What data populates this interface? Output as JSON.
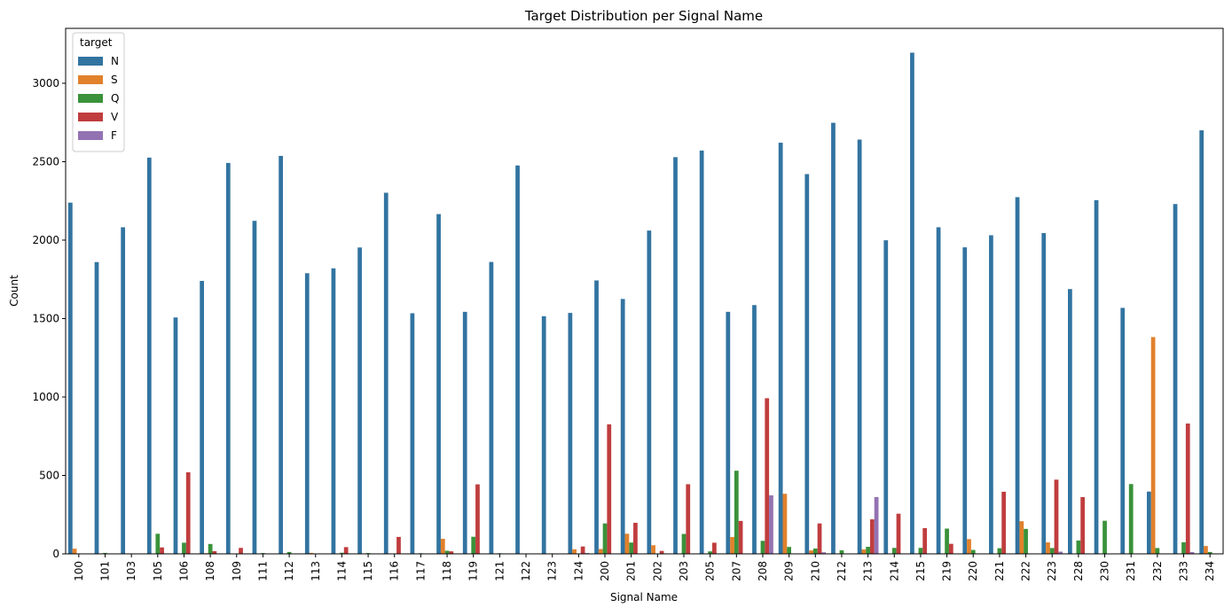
{
  "chart_data": {
    "type": "bar",
    "title": "Target Distribution per Signal Name",
    "xlabel": "Signal Name",
    "ylabel": "Count",
    "ylim": [
      0,
      3350
    ],
    "yticks": [
      0,
      500,
      1000,
      1500,
      2000,
      2500,
      3000
    ],
    "ytick_labels": [
      "0",
      "500",
      "1000",
      "1500",
      "2000",
      "2500",
      "3000"
    ],
    "legend": {
      "title": "target",
      "placement": "top-left"
    },
    "categories": [
      "100",
      "101",
      "103",
      "105",
      "106",
      "108",
      "109",
      "111",
      "112",
      "113",
      "114",
      "115",
      "116",
      "117",
      "118",
      "119",
      "121",
      "122",
      "123",
      "124",
      "200",
      "201",
      "202",
      "203",
      "205",
      "207",
      "208",
      "209",
      "210",
      "212",
      "213",
      "214",
      "215",
      "219",
      "220",
      "221",
      "222",
      "223",
      "228",
      "230",
      "231",
      "232",
      "233",
      "234"
    ],
    "series": [
      {
        "name": "N",
        "color": "#3274a1",
        "values": [
          2239,
          1860,
          2082,
          2526,
          1507,
          1740,
          2492,
          2123,
          2537,
          1789,
          1820,
          1953,
          2302,
          1534,
          2166,
          1543,
          1861,
          2476,
          1515,
          1536,
          1743,
          1625,
          2061,
          2529,
          2571,
          1543,
          1586,
          2621,
          2421,
          2748,
          2641,
          1999,
          3195,
          2082,
          1954,
          2031,
          2274,
          2045,
          1688,
          2255,
          1568,
          397,
          2230,
          2700
        ]
      },
      {
        "name": "S",
        "color": "#e1812c",
        "values": [
          33,
          3,
          2,
          0,
          0,
          4,
          0,
          0,
          1,
          6,
          0,
          1,
          1,
          0,
          96,
          0,
          1,
          0,
          0,
          29,
          31,
          128,
          55,
          2,
          3,
          107,
          0,
          383,
          22,
          0,
          28,
          0,
          0,
          0,
          94,
          0,
          208,
          73,
          0,
          0,
          0,
          1382,
          0,
          50
        ]
      },
      {
        "name": "Q",
        "color": "#3a923a",
        "values": [
          2,
          6,
          2,
          128,
          71,
          63,
          2,
          5,
          12,
          0,
          7,
          5,
          2,
          4,
          20,
          109,
          4,
          0,
          3,
          0,
          194,
          72,
          0,
          127,
          16,
          530,
          83,
          44,
          34,
          23,
          45,
          38,
          38,
          161,
          25,
          36,
          159,
          37,
          85,
          211,
          445,
          37,
          74,
          12
        ]
      },
      {
        "name": "V",
        "color": "#c03d3e",
        "values": [
          1,
          0,
          3,
          41,
          520,
          17,
          38,
          1,
          0,
          3,
          43,
          0,
          108,
          0,
          16,
          443,
          0,
          0,
          0,
          47,
          826,
          198,
          19,
          444,
          71,
          210,
          992,
          0,
          194,
          0,
          220,
          256,
          164,
          64,
          0,
          396,
          0,
          473,
          362,
          0,
          0,
          0,
          831,
          3
        ]
      },
      {
        "name": "F",
        "color": "#9372b2",
        "values": [
          0,
          0,
          0,
          0,
          0,
          0,
          0,
          0,
          0,
          0,
          0,
          0,
          0,
          0,
          0,
          0,
          0,
          0,
          0,
          5,
          2,
          0,
          0,
          0,
          0,
          0,
          373,
          0,
          10,
          0,
          362,
          1,
          1,
          0,
          0,
          0,
          0,
          14,
          0,
          0,
          0,
          0,
          11,
          0
        ]
      }
    ]
  }
}
